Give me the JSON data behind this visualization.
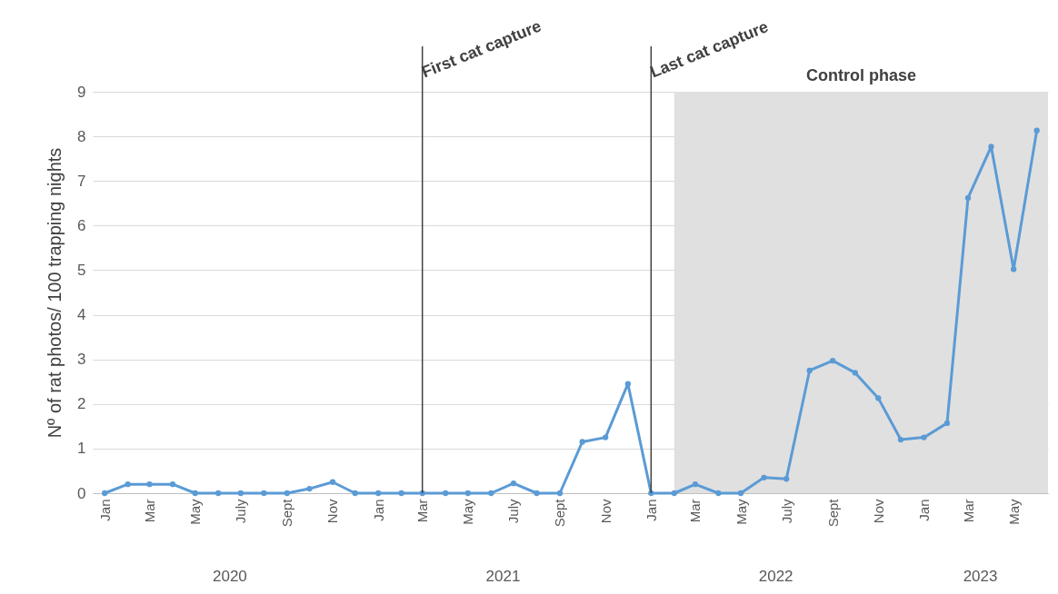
{
  "chart_data": {
    "type": "line",
    "ylabel": "Nº of rat photos/ 100 trapping nights",
    "x": [
      "2020-01",
      "2020-02",
      "2020-03",
      "2020-04",
      "2020-05",
      "2020-06",
      "2020-07",
      "2020-08",
      "2020-09",
      "2020-10",
      "2020-11",
      "2020-12",
      "2021-01",
      "2021-02",
      "2021-03",
      "2021-04",
      "2021-05",
      "2021-06",
      "2021-07",
      "2021-08",
      "2021-09",
      "2021-10",
      "2021-11",
      "2021-12",
      "2022-01",
      "2022-02",
      "2022-03",
      "2022-04",
      "2022-05",
      "2022-06",
      "2022-07",
      "2022-08",
      "2022-09",
      "2022-10",
      "2022-11",
      "2022-12",
      "2023-01",
      "2023-02",
      "2023-03",
      "2023-04",
      "2023-05",
      "2023-06"
    ],
    "values": [
      0,
      0.2,
      0.2,
      0.2,
      0,
      0,
      0,
      0,
      0,
      0.1,
      0.25,
      0,
      0,
      0,
      0,
      0,
      0,
      0,
      0.22,
      0,
      0,
      1.15,
      1.25,
      2.45,
      0,
      0,
      0.2,
      0,
      0,
      0.35,
      0.32,
      2.75,
      2.97,
      2.7,
      2.13,
      1.2,
      1.25,
      1.57,
      6.62,
      7.77,
      5.02,
      8.13
    ],
    "color": "#5b9bd5",
    "marker": "circle",
    "xlim": [
      "2019-12-16",
      "2023-06-16"
    ],
    "xticks": [
      {
        "value": "2020-01",
        "label": "Jan"
      },
      {
        "value": "2020-03",
        "label": "Mar"
      },
      {
        "value": "2020-05",
        "label": "May"
      },
      {
        "value": "2020-07",
        "label": "July"
      },
      {
        "value": "2020-09",
        "label": "Sept"
      },
      {
        "value": "2020-11",
        "label": "Nov"
      },
      {
        "value": "2021-01",
        "label": "Jan"
      },
      {
        "value": "2021-03",
        "label": "Mar"
      },
      {
        "value": "2021-05",
        "label": "May"
      },
      {
        "value": "2021-07",
        "label": "July"
      },
      {
        "value": "2021-09",
        "label": "Sept"
      },
      {
        "value": "2021-11",
        "label": "Nov"
      },
      {
        "value": "2022-01",
        "label": "Jan"
      },
      {
        "value": "2022-03",
        "label": "Mar"
      },
      {
        "value": "2022-05",
        "label": "May"
      },
      {
        "value": "2022-07",
        "label": "July"
      },
      {
        "value": "2022-09",
        "label": "Sept"
      },
      {
        "value": "2022-11",
        "label": "Nov"
      },
      {
        "value": "2023-01",
        "label": "Jan"
      },
      {
        "value": "2023-03",
        "label": "Mar"
      },
      {
        "value": "2023-05",
        "label": "May"
      }
    ],
    "ylim": [
      0,
      9
    ],
    "yticks": [
      0,
      1,
      2,
      3,
      4,
      5,
      6,
      7,
      8,
      9
    ],
    "grid": "y",
    "ref_lines": [
      {
        "axis": "x",
        "value": "2021-03",
        "label": "First cat capture",
        "color": "#404040"
      },
      {
        "axis": "x",
        "value": "2022-01",
        "label": "Last cat capture",
        "color": "#404040"
      }
    ],
    "bands": [
      {
        "axis": "x",
        "from": "2022-02",
        "to": "2023-06-16",
        "label": "Control phase",
        "color": "#e0e0e0"
      }
    ],
    "annotations": [
      "2020",
      "2021",
      "2022",
      "2023"
    ]
  }
}
